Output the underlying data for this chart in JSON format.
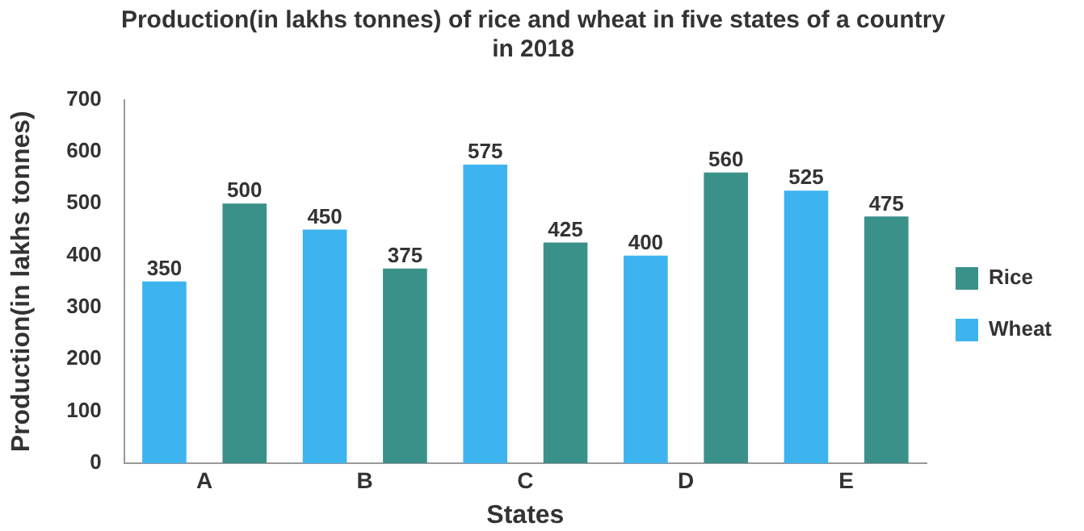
{
  "chart_data": {
    "type": "bar",
    "title": "Production(in lakhs tonnes) of rice and wheat in five states of a country in 2018",
    "xlabel": "States",
    "ylabel": "Production(in lakhs tonnes)",
    "categories": [
      "A",
      "B",
      "C",
      "D",
      "E"
    ],
    "series": [
      {
        "name": "Wheat",
        "color": "#3db4f0",
        "values": [
          350,
          450,
          575,
          400,
          525
        ]
      },
      {
        "name": "Rice",
        "color": "#3a918a",
        "values": [
          500,
          375,
          425,
          560,
          475
        ]
      }
    ],
    "ylim": [
      0,
      700
    ],
    "yticks": [
      0,
      100,
      200,
      300,
      400,
      500,
      600,
      700
    ],
    "grid": false,
    "legend": "right",
    "data_labels": true
  }
}
